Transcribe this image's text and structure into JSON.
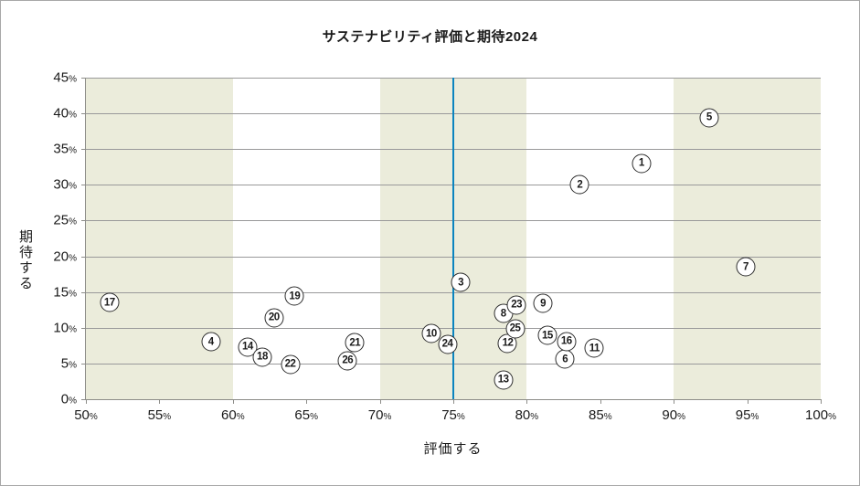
{
  "chart_data": {
    "type": "scatter",
    "title": "サステナビリティ評価と期待2024",
    "xlabel": "評価する",
    "ylabel": "期待する",
    "xlim": [
      50,
      100
    ],
    "ylim": [
      0,
      45
    ],
    "x_ticks": [
      50,
      55,
      60,
      65,
      70,
      75,
      80,
      85,
      90,
      95,
      100
    ],
    "y_ticks": [
      0,
      5,
      10,
      15,
      20,
      25,
      30,
      35,
      40,
      45
    ],
    "tick_suffix": "%",
    "grid": "horizontal",
    "legend": "none",
    "highlight_bands_x": [
      [
        50,
        60
      ],
      [
        70,
        80
      ],
      [
        90,
        100
      ]
    ],
    "reference_line_x": 75,
    "points": [
      {
        "label": "1",
        "x": 87.8,
        "y": 33.0
      },
      {
        "label": "2",
        "x": 83.6,
        "y": 30.0
      },
      {
        "label": "3",
        "x": 75.5,
        "y": 16.3
      },
      {
        "label": "4",
        "x": 58.5,
        "y": 8.0
      },
      {
        "label": "5",
        "x": 92.4,
        "y": 39.4
      },
      {
        "label": "6",
        "x": 82.6,
        "y": 5.6
      },
      {
        "label": "7",
        "x": 94.9,
        "y": 18.5
      },
      {
        "label": "8",
        "x": 78.4,
        "y": 12.0
      },
      {
        "label": "9",
        "x": 81.1,
        "y": 13.4
      },
      {
        "label": "10",
        "x": 73.5,
        "y": 9.2
      },
      {
        "label": "11",
        "x": 84.6,
        "y": 7.1
      },
      {
        "label": "12",
        "x": 78.7,
        "y": 7.8
      },
      {
        "label": "13",
        "x": 78.4,
        "y": 2.7
      },
      {
        "label": "14",
        "x": 61.0,
        "y": 7.3
      },
      {
        "label": "15",
        "x": 81.4,
        "y": 8.9
      },
      {
        "label": "16",
        "x": 82.7,
        "y": 8.1
      },
      {
        "label": "17",
        "x": 51.6,
        "y": 13.5
      },
      {
        "label": "18",
        "x": 62.0,
        "y": 5.9
      },
      {
        "label": "19",
        "x": 64.2,
        "y": 14.4
      },
      {
        "label": "20",
        "x": 62.8,
        "y": 11.4
      },
      {
        "label": "21",
        "x": 68.3,
        "y": 7.9
      },
      {
        "label": "22",
        "x": 63.9,
        "y": 4.9
      },
      {
        "label": "23",
        "x": 79.3,
        "y": 13.2
      },
      {
        "label": "24",
        "x": 74.6,
        "y": 7.7
      },
      {
        "label": "25",
        "x": 79.2,
        "y": 9.9
      },
      {
        "label": "26",
        "x": 67.8,
        "y": 5.4
      }
    ],
    "colors": {
      "background": "#ffffff",
      "band": "#ebecdb",
      "gridline": "#99999a",
      "axis": "#8d8d89",
      "reference_line": "#0b84bf",
      "marker_fill": "#ffffff",
      "marker_border": "#2e2e2e",
      "text": "#1a1a1a"
    }
  }
}
